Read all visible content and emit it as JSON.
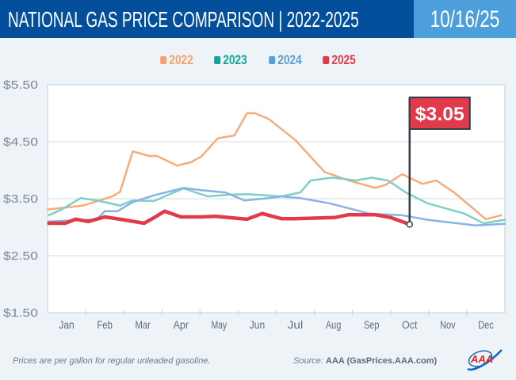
{
  "header": {
    "title": "NATIONAL GAS PRICE COMPARISON",
    "title_separator": "|",
    "subtitle": "2022-2025",
    "date": "10/16/25"
  },
  "colors": {
    "header_bg": "#034f9b",
    "date_bg": "#4c9fdb",
    "2022": "#f8ab78",
    "2023": "#7dd0c6",
    "2024": "#88b3e4",
    "2025": "#e23a4a"
  },
  "legend": [
    {
      "label": "2022",
      "color": "#f7a26c"
    },
    {
      "label": "2023",
      "color": "#13a597"
    },
    {
      "label": "2024",
      "color": "#5a9fd8"
    },
    {
      "label": "2025",
      "color": "#e23a4a"
    }
  ],
  "chart_data": {
    "type": "line",
    "title": "NATIONAL GAS PRICE COMPARISON | 2022-2025",
    "xlabel": "",
    "ylabel": "",
    "x_ticks": [
      "Jan",
      "Feb",
      "Mar",
      "Apr",
      "May",
      "Jun",
      "Jul",
      "Aug",
      "Sep",
      "Oct",
      "Nov",
      "Dec"
    ],
    "y_ticks": [
      "$1.50",
      "$2.50",
      "$3.50",
      "$4.50",
      "$5.50"
    ],
    "ylim": [
      1.5,
      5.5
    ],
    "grid": true,
    "legend_position": "top-center",
    "annotation": {
      "label": "$3.05",
      "series": "2025",
      "date": "Oct 16",
      "value": 3.05
    },
    "series": [
      {
        "name": "2022",
        "points": [
          [
            "Jan 1",
            3.31
          ],
          [
            "Jan 29",
            3.38
          ],
          [
            "Feb 22",
            3.54
          ],
          [
            "Feb 28",
            3.62
          ],
          [
            "Mar 8",
            4.33
          ],
          [
            "Mar 21",
            4.25
          ],
          [
            "Mar 27",
            4.25
          ],
          [
            "Apr 13",
            4.08
          ],
          [
            "Apr 24",
            4.14
          ],
          [
            "May 2",
            4.24
          ],
          [
            "May 15",
            4.56
          ],
          [
            "May 28",
            4.61
          ],
          [
            "Jun 8",
            5.0
          ],
          [
            "Jun 14",
            5.0
          ],
          [
            "Jun 25",
            4.9
          ],
          [
            "Jul 16",
            4.53
          ],
          [
            "Aug 9",
            3.97
          ],
          [
            "Aug 28",
            3.82
          ],
          [
            "Sep 19",
            3.69
          ],
          [
            "Sep 27",
            3.74
          ],
          [
            "Oct 10",
            3.93
          ],
          [
            "Oct 26",
            3.76
          ],
          [
            "Nov 7",
            3.82
          ],
          [
            "Nov 21",
            3.61
          ],
          [
            "Dec 16",
            3.14
          ],
          [
            "Dec 28",
            3.21
          ]
        ]
      },
      {
        "name": "2023",
        "points": [
          [
            "Jan 2",
            3.21
          ],
          [
            "Jan 12",
            3.31
          ],
          [
            "Jan 27",
            3.51
          ],
          [
            "Feb 10",
            3.47
          ],
          [
            "Feb 28",
            3.38
          ],
          [
            "Mar 8",
            3.47
          ],
          [
            "Mar 25",
            3.46
          ],
          [
            "Apr 3",
            3.54
          ],
          [
            "Apr 18",
            3.68
          ],
          [
            "May 7",
            3.54
          ],
          [
            "May 23",
            3.57
          ],
          [
            "Jun 8",
            3.58
          ],
          [
            "Jun 22",
            3.56
          ],
          [
            "Jul 5",
            3.54
          ],
          [
            "Jul 20",
            3.61
          ],
          [
            "Jul 28",
            3.82
          ],
          [
            "Aug 15",
            3.87
          ],
          [
            "Sep 4",
            3.82
          ],
          [
            "Sep 16",
            3.87
          ],
          [
            "Sep 29",
            3.82
          ],
          [
            "Oct 13",
            3.61
          ],
          [
            "Oct 30",
            3.42
          ],
          [
            "Nov 29",
            3.24
          ],
          [
            "Dec 14",
            3.07
          ],
          [
            "Dec 31",
            3.13
          ]
        ]
      },
      {
        "name": "2024",
        "points": [
          [
            "Jan 2",
            3.1
          ],
          [
            "Feb 10",
            3.14
          ],
          [
            "Feb 16",
            3.28
          ],
          [
            "Feb 26",
            3.28
          ],
          [
            "Mar 8",
            3.44
          ],
          [
            "Mar 25",
            3.56
          ],
          [
            "Apr 18",
            3.69
          ],
          [
            "May 2",
            3.65
          ],
          [
            "May 21",
            3.61
          ],
          [
            "Jun 6",
            3.47
          ],
          [
            "Jun 25",
            3.51
          ],
          [
            "Jul 5",
            3.54
          ],
          [
            "Jul 20",
            3.51
          ],
          [
            "Aug 13",
            3.42
          ],
          [
            "Sep 14",
            3.24
          ],
          [
            "Oct 10",
            3.21
          ],
          [
            "Oct 30",
            3.13
          ],
          [
            "Dec 8",
            3.03
          ],
          [
            "Dec 31",
            3.06
          ]
        ]
      },
      {
        "name": "2025",
        "points": [
          [
            "Jan 2",
            3.07
          ],
          [
            "Jan 15",
            3.07
          ],
          [
            "Jan 23",
            3.14
          ],
          [
            "Feb 3",
            3.1
          ],
          [
            "Feb 16",
            3.18
          ],
          [
            "Mar 1",
            3.13
          ],
          [
            "Mar 17",
            3.07
          ],
          [
            "Mar 25",
            3.17
          ],
          [
            "Apr 3",
            3.28
          ],
          [
            "Apr 16",
            3.18
          ],
          [
            "May 2",
            3.18
          ],
          [
            "May 13",
            3.19
          ],
          [
            "Jun 8",
            3.14
          ],
          [
            "Jun 20",
            3.24
          ],
          [
            "Jun 25",
            3.21
          ],
          [
            "Jul 5",
            3.15
          ],
          [
            "Jul 16",
            3.15
          ],
          [
            "Aug 17",
            3.17
          ],
          [
            "Aug 28",
            3.22
          ],
          [
            "Sep 19",
            3.22
          ],
          [
            "Oct 1",
            3.17
          ],
          [
            "Oct 16",
            3.05
          ]
        ]
      }
    ]
  },
  "footer": {
    "note": "Prices are per gallon for regular unleaded gasoline.",
    "source_label": "Source:",
    "source_value": "AAA (GasPrices.AAA.com)",
    "logo_text": "AAA"
  }
}
